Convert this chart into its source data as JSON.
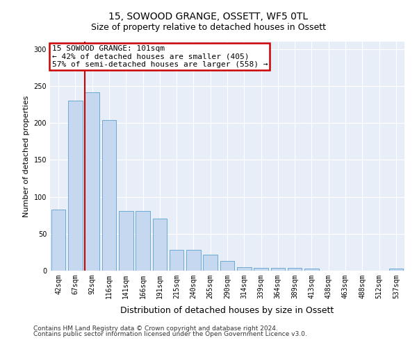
{
  "title": "15, SOWOOD GRANGE, OSSETT, WF5 0TL",
  "subtitle": "Size of property relative to detached houses in Ossett",
  "xlabel": "Distribution of detached houses by size in Ossett",
  "ylabel": "Number of detached properties",
  "categories": [
    "42sqm",
    "67sqm",
    "92sqm",
    "116sqm",
    "141sqm",
    "166sqm",
    "191sqm",
    "215sqm",
    "240sqm",
    "265sqm",
    "290sqm",
    "314sqm",
    "339sqm",
    "364sqm",
    "389sqm",
    "413sqm",
    "438sqm",
    "463sqm",
    "488sqm",
    "512sqm",
    "537sqm"
  ],
  "values": [
    83,
    230,
    241,
    204,
    81,
    81,
    70,
    28,
    28,
    22,
    13,
    5,
    4,
    4,
    4,
    3,
    0,
    0,
    0,
    0,
    3
  ],
  "bar_color": "#c5d8f0",
  "bar_edge_color": "#6aaad4",
  "red_line_color": "#cc0000",
  "red_line_bar_index": 2,
  "annotation_line1": "15 SOWOOD GRANGE: 101sqm",
  "annotation_line2": "← 42% of detached houses are smaller (405)",
  "annotation_line3": "57% of semi-detached houses are larger (558) →",
  "annotation_box_facecolor": "#ffffff",
  "annotation_box_edgecolor": "#cc0000",
  "ylim": [
    0,
    310
  ],
  "yticks": [
    0,
    50,
    100,
    150,
    200,
    250,
    300
  ],
  "bg_color": "#e8eef8",
  "footer1": "Contains HM Land Registry data © Crown copyright and database right 2024.",
  "footer2": "Contains public sector information licensed under the Open Government Licence v3.0.",
  "title_fontsize": 10,
  "subtitle_fontsize": 9,
  "annotation_fontsize": 8,
  "tick_fontsize": 7,
  "ylabel_fontsize": 8,
  "xlabel_fontsize": 9,
  "footer_fontsize": 6.5
}
